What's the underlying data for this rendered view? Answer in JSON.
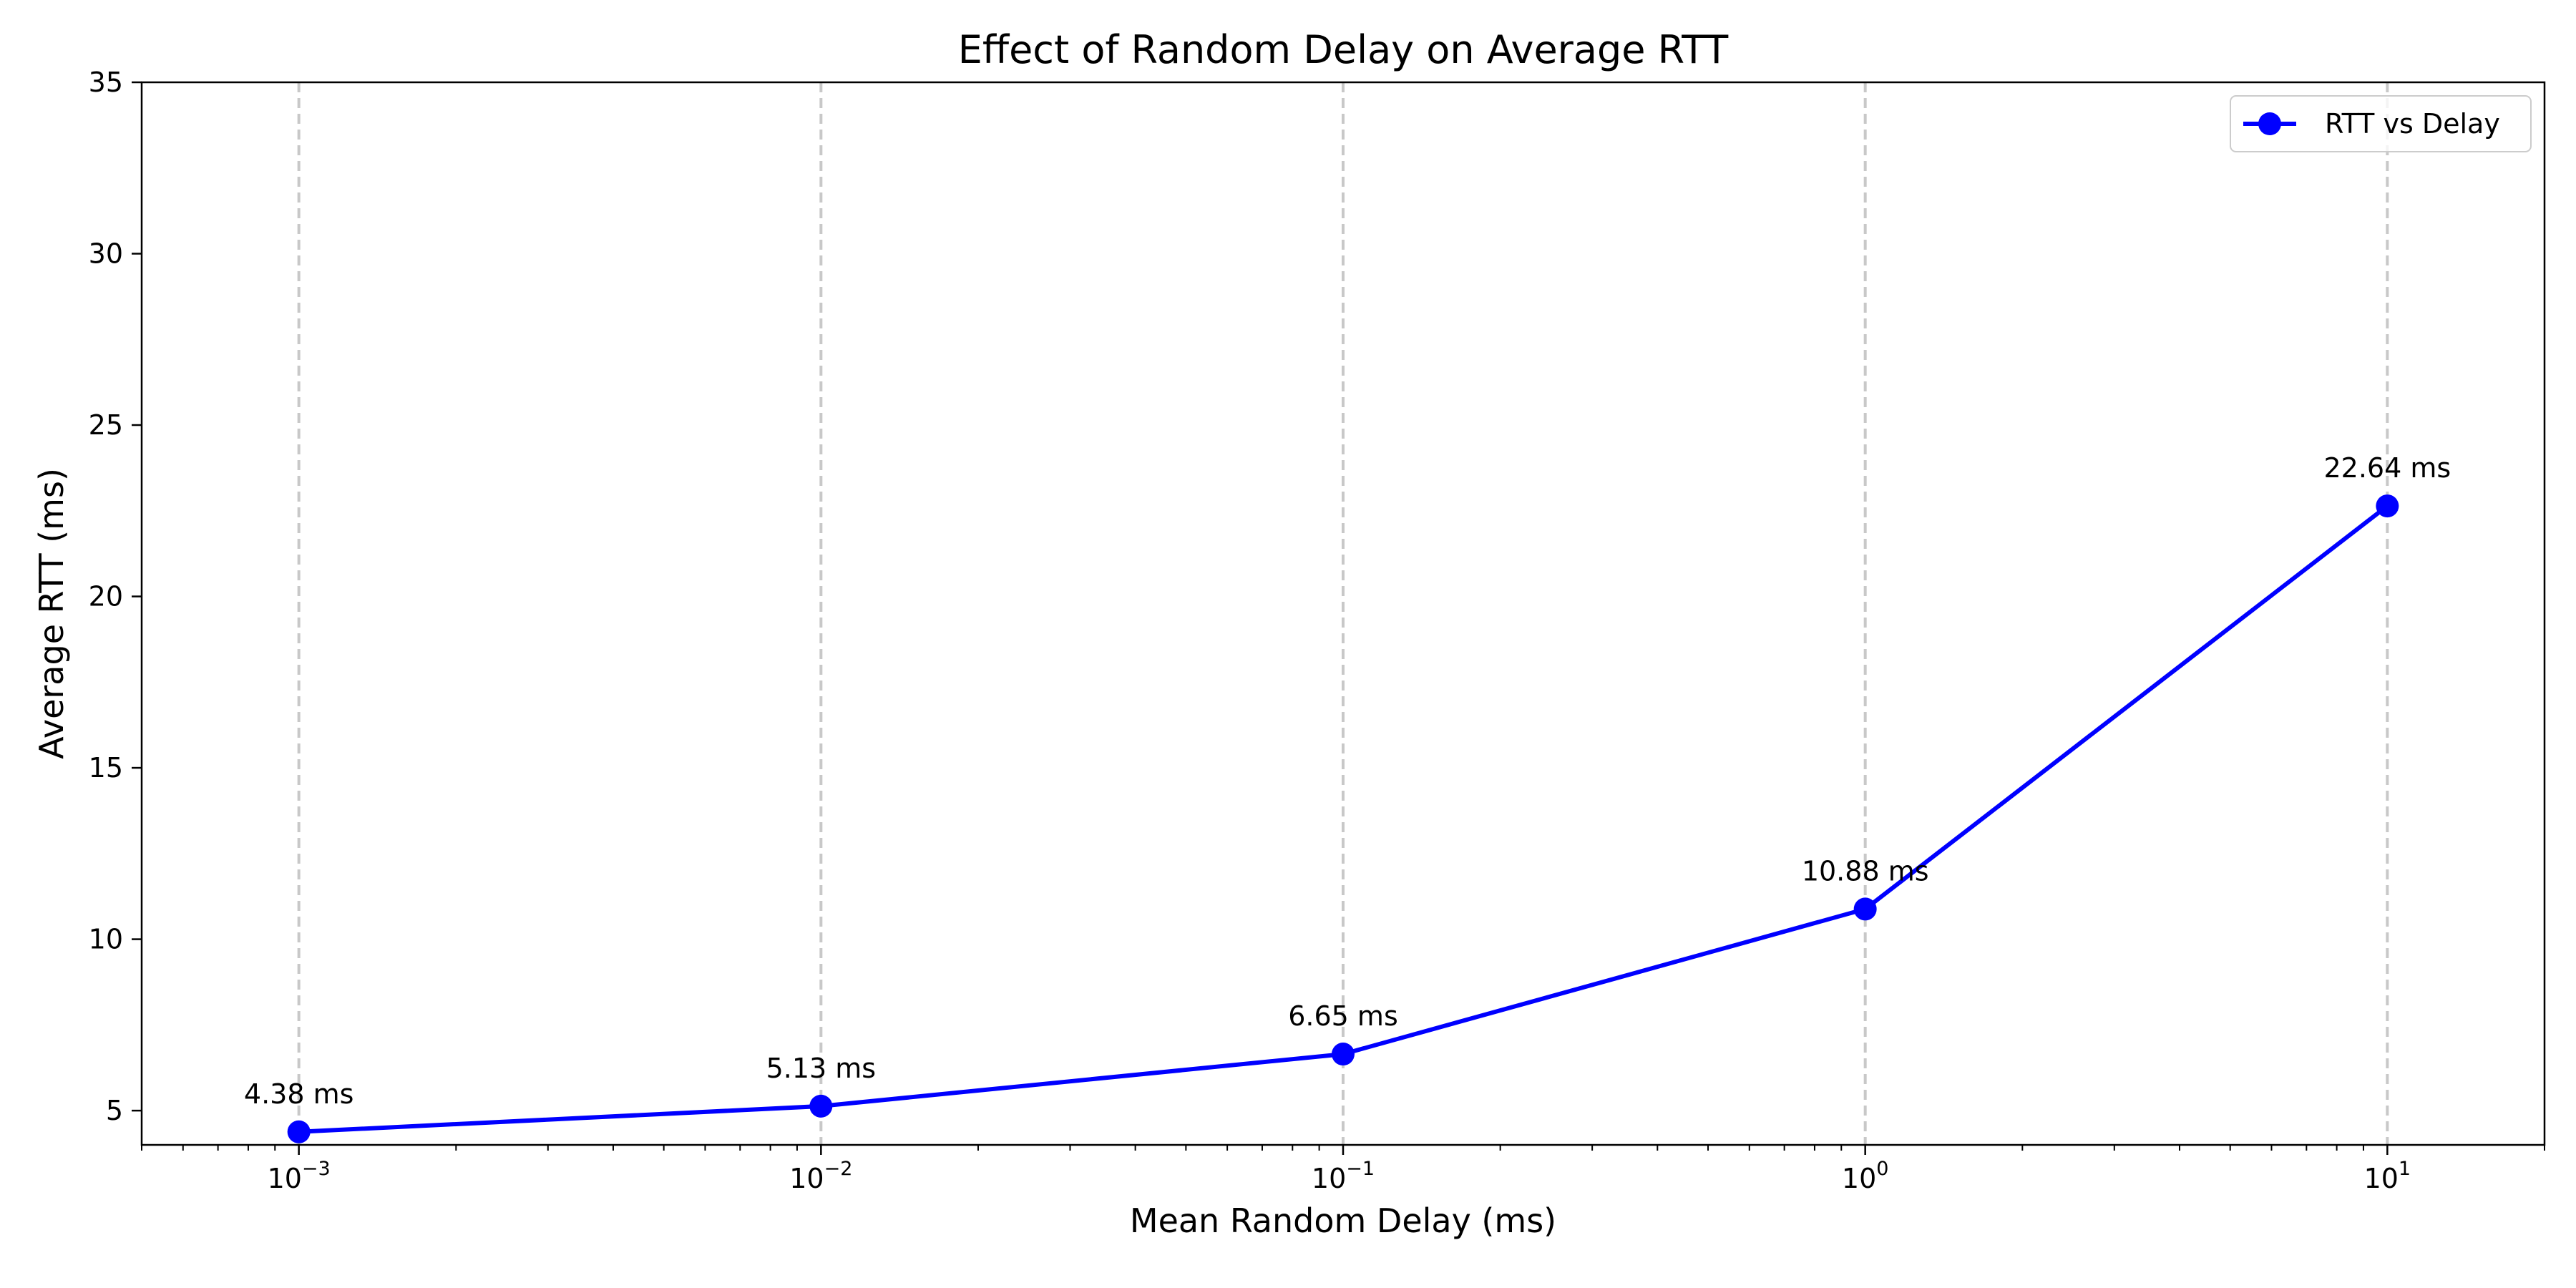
{
  "chart_data": {
    "type": "line",
    "title": "Effect of Random Delay on Average RTT",
    "xlabel": "Mean Random Delay (ms)",
    "ylabel": "Average RTT (ms)",
    "xscale": "log",
    "xlim": [
      0.0005,
      20
    ],
    "ylim": [
      4,
      35
    ],
    "x_ticks": [
      0.001,
      0.01,
      0.1,
      1,
      10
    ],
    "x_tick_labels": [
      {
        "base": "10",
        "exp": "−3"
      },
      {
        "base": "10",
        "exp": "−2"
      },
      {
        "base": "10",
        "exp": "−1"
      },
      {
        "base": "10",
        "exp": "0"
      },
      {
        "base": "10",
        "exp": "1"
      }
    ],
    "y_ticks": [
      5,
      10,
      15,
      20,
      25,
      30,
      35
    ],
    "y_tick_labels": [
      "5",
      "10",
      "15",
      "20",
      "25",
      "30",
      "35"
    ],
    "grid": "x-major-dashed",
    "legend_position": "top-right",
    "series": [
      {
        "name": "RTT vs Delay",
        "color": "#0000ff",
        "marker": "circle",
        "x": [
          0.001,
          0.01,
          0.1,
          1,
          10
        ],
        "y": [
          4.38,
          5.13,
          6.65,
          10.88,
          22.64
        ],
        "labels": [
          "4.38 ms",
          "5.13 ms",
          "6.65 ms",
          "10.88 ms",
          "22.64 ms"
        ]
      }
    ]
  }
}
